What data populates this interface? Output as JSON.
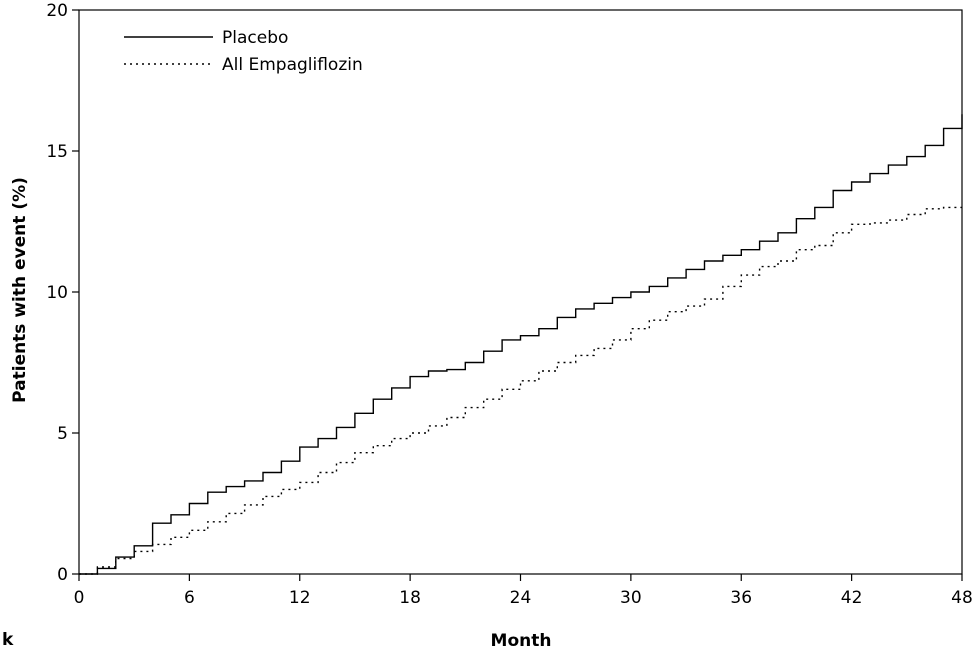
{
  "chart_data": {
    "type": "line",
    "title": "",
    "xlabel": "Month",
    "ylabel": "Patients with event (%)",
    "corner_label": "k",
    "xlim": [
      0,
      48
    ],
    "ylim": [
      0,
      20
    ],
    "xticks": [
      0,
      6,
      12,
      18,
      24,
      30,
      36,
      42,
      48
    ],
    "yticks": [
      0,
      5,
      10,
      15,
      20
    ],
    "grid": false,
    "legend_position": "top-left",
    "series": [
      {
        "name": "Placebo",
        "style": "solid",
        "color": "#000000",
        "x": [
          0,
          1,
          2,
          3,
          4,
          5,
          6,
          7,
          8,
          9,
          10,
          11,
          12,
          13,
          14,
          15,
          16,
          17,
          18,
          19,
          20,
          21,
          22,
          23,
          24,
          25,
          26,
          27,
          28,
          29,
          30,
          31,
          32,
          33,
          34,
          35,
          36,
          37,
          38,
          39,
          40,
          41,
          42,
          43,
          44,
          45,
          46,
          47,
          48
        ],
        "y": [
          0,
          0.2,
          0.6,
          1.0,
          1.8,
          2.1,
          2.5,
          2.9,
          3.1,
          3.3,
          3.6,
          4.0,
          4.5,
          4.8,
          5.2,
          5.7,
          6.2,
          6.6,
          7.0,
          7.2,
          7.25,
          7.5,
          7.9,
          8.3,
          8.45,
          8.7,
          9.1,
          9.4,
          9.6,
          9.8,
          10.0,
          10.2,
          10.5,
          10.8,
          11.1,
          11.3,
          11.5,
          11.8,
          12.1,
          12.6,
          13.0,
          13.6,
          13.9,
          14.2,
          14.5,
          14.8,
          15.2,
          15.8,
          16.3
        ]
      },
      {
        "name": "All Empagliflozin",
        "style": "dotted",
        "color": "#000000",
        "x": [
          0,
          1,
          2,
          3,
          4,
          5,
          6,
          7,
          8,
          9,
          10,
          11,
          12,
          13,
          14,
          15,
          16,
          17,
          18,
          19,
          20,
          21,
          22,
          23,
          24,
          25,
          26,
          27,
          28,
          29,
          30,
          31,
          32,
          33,
          34,
          35,
          36,
          37,
          38,
          39,
          40,
          41,
          42,
          43,
          44,
          45,
          46,
          47,
          48
        ],
        "y": [
          0,
          0.25,
          0.55,
          0.8,
          1.05,
          1.3,
          1.55,
          1.85,
          2.15,
          2.45,
          2.75,
          3.0,
          3.25,
          3.6,
          3.95,
          4.3,
          4.55,
          4.8,
          5.0,
          5.25,
          5.55,
          5.9,
          6.2,
          6.55,
          6.85,
          7.2,
          7.5,
          7.75,
          8.0,
          8.3,
          8.7,
          9.0,
          9.3,
          9.5,
          9.75,
          10.2,
          10.6,
          10.9,
          11.1,
          11.5,
          11.65,
          12.1,
          12.4,
          12.45,
          12.55,
          12.75,
          12.95,
          13.0,
          13.0
        ]
      }
    ]
  }
}
